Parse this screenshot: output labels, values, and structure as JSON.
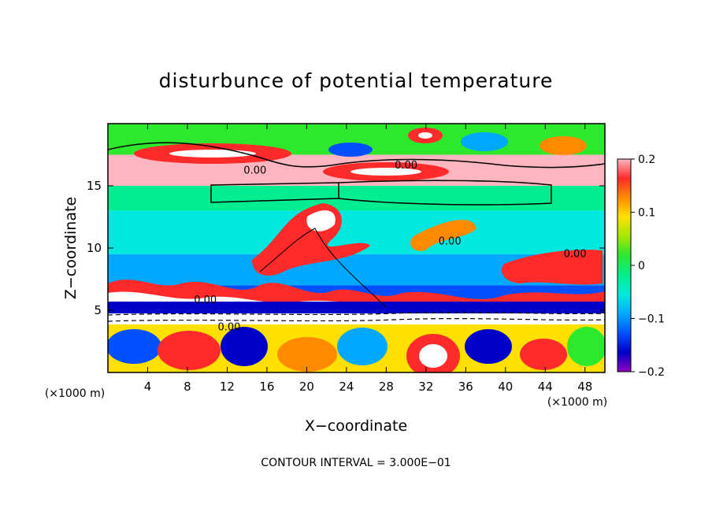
{
  "chart_data": {
    "type": "heatmap",
    "title": "disturbunce of potential temperature",
    "xlabel": "X−coordinate",
    "ylabel": "Z−coordinate",
    "x_unit_label": "(×1000 m)",
    "y_unit_label": "(×1000 m)",
    "xlim": [
      0,
      50
    ],
    "ylim": [
      0,
      20
    ],
    "x_ticks": [
      4,
      8,
      12,
      16,
      20,
      24,
      28,
      32,
      36,
      40,
      44,
      48
    ],
    "y_ticks": [
      5,
      10,
      15
    ],
    "colorbar": {
      "min": -0.2,
      "max": 0.2,
      "tick_values": [
        0.2,
        0.1,
        0,
        -0.1,
        -0.2
      ],
      "tick_labels": [
        "0.2",
        "0.1",
        "0",
        "−0.1",
        "−0.2"
      ],
      "colors": [
        "#ffb6c1",
        "#ff2a2a",
        "#ff8a00",
        "#ffe000",
        "#a8e800",
        "#2ee82e",
        "#00ee90",
        "#00e8e0",
        "#00a8ff",
        "#0050ff",
        "#0000c8",
        "#9000c0"
      ]
    },
    "contour_interval_text": "CONTOUR INTERVAL = 3.000E−01",
    "contour_labels": [
      {
        "x": 14.8,
        "z": 16.3,
        "text": "0.00"
      },
      {
        "x": 30.0,
        "z": 16.7,
        "text": "0.00"
      },
      {
        "x": 34.4,
        "z": 10.6,
        "text": "0.00"
      },
      {
        "x": 47.0,
        "z": 9.6,
        "text": "0.00"
      },
      {
        "x": 9.8,
        "z": 5.9,
        "text": "0.00"
      },
      {
        "x": 12.2,
        "z": 3.7,
        "text": "0.00"
      }
    ],
    "field_bands": [
      {
        "z_min": 17.5,
        "z_max": 20.0,
        "value": 0.02
      },
      {
        "z_min": 15.0,
        "z_max": 17.5,
        "value": 0.18
      },
      {
        "z_min": 13.0,
        "z_max": 15.0,
        "value": 0.0
      },
      {
        "z_min": 9.5,
        "z_max": 13.0,
        "value": -0.05
      },
      {
        "z_min": 7.0,
        "z_max": 9.5,
        "value": -0.08
      },
      {
        "z_min": 5.5,
        "z_max": 7.0,
        "value": -0.12
      },
      {
        "z_min": 4.0,
        "z_max": 5.5,
        "value": -0.2
      },
      {
        "z_min": 0.0,
        "z_max": 4.0,
        "value": 0.1
      }
    ]
  }
}
